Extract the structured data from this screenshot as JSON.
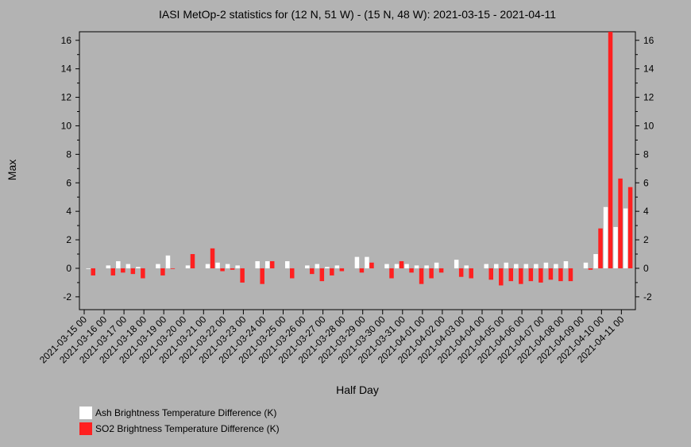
{
  "chart_data": {
    "type": "bar",
    "title": "IASI MetOp-2 statistics for (12 N, 51 W) - (15 N, 48 W): 2021-03-15 - 2021-04-11",
    "xlabel": "Half Day",
    "ylabel": "Max",
    "ylim": [
      -2.9,
      16.6
    ],
    "yticks": [
      -2,
      0,
      2,
      4,
      6,
      8,
      10,
      12,
      14,
      16
    ],
    "xtick_labels": [
      "2021-03-15 00",
      "2021-03-16 00",
      "2021-03-17 00",
      "2021-03-18 00",
      "2021-03-19 00",
      "2021-03-20 00",
      "2021-03-21 00",
      "2021-03-22 00",
      "2021-03-23 00",
      "2021-03-24 00",
      "2021-03-25 00",
      "2021-03-26 00",
      "2021-03-27 00",
      "2021-03-28 00",
      "2021-03-29 00",
      "2021-03-30 00",
      "2021-03-31 00",
      "2021-04-01 00",
      "2021-04-02 00",
      "2021-04-03 00",
      "2021-04-04 00",
      "2021-04-05 00",
      "2021-04-06 00",
      "2021-04-07 00",
      "2021-04-08 00",
      "2021-04-09 00",
      "2021-04-10 00",
      "2021-04-11 00"
    ],
    "legend": "bottom-left",
    "series": [
      {
        "name": "Ash Brightness Temperature Difference (K)",
        "color": "#ffffff",
        "values": [
          0.0,
          null,
          0.2,
          0.5,
          0.3,
          0.1,
          null,
          0.3,
          0.9,
          null,
          0.2,
          null,
          0.3,
          0.4,
          0.3,
          0.2,
          null,
          0.5,
          0.5,
          null,
          0.5,
          null,
          0.2,
          0.3,
          0.1,
          0.2,
          null,
          0.8,
          0.8,
          null,
          0.3,
          0.3,
          0.3,
          0.2,
          0.2,
          0.4,
          null,
          0.6,
          0.2,
          null,
          0.3,
          0.3,
          0.4,
          0.3,
          0.3,
          0.3,
          0.4,
          0.3,
          0.5,
          null,
          0.4,
          1.0,
          4.3,
          2.9,
          4.2
        ]
      },
      {
        "name": "SO2 Brightness Temperature Difference (K)",
        "color": "#ff2020",
        "values": [
          -0.5,
          null,
          -0.5,
          -0.3,
          -0.4,
          -0.7,
          null,
          -0.5,
          0.0,
          null,
          1.0,
          null,
          1.4,
          -0.2,
          -0.1,
          -1.0,
          null,
          -1.1,
          0.5,
          null,
          -0.7,
          null,
          -0.4,
          -0.9,
          -0.5,
          -0.2,
          null,
          -0.3,
          0.4,
          null,
          -0.7,
          0.5,
          -0.3,
          -1.1,
          -0.7,
          -0.3,
          null,
          -0.6,
          -0.7,
          null,
          -0.8,
          -1.2,
          -0.9,
          -1.1,
          -0.9,
          -1.0,
          -0.8,
          -0.9,
          -0.9,
          null,
          -0.1,
          2.8,
          16.6,
          6.3,
          5.7
        ]
      }
    ]
  }
}
